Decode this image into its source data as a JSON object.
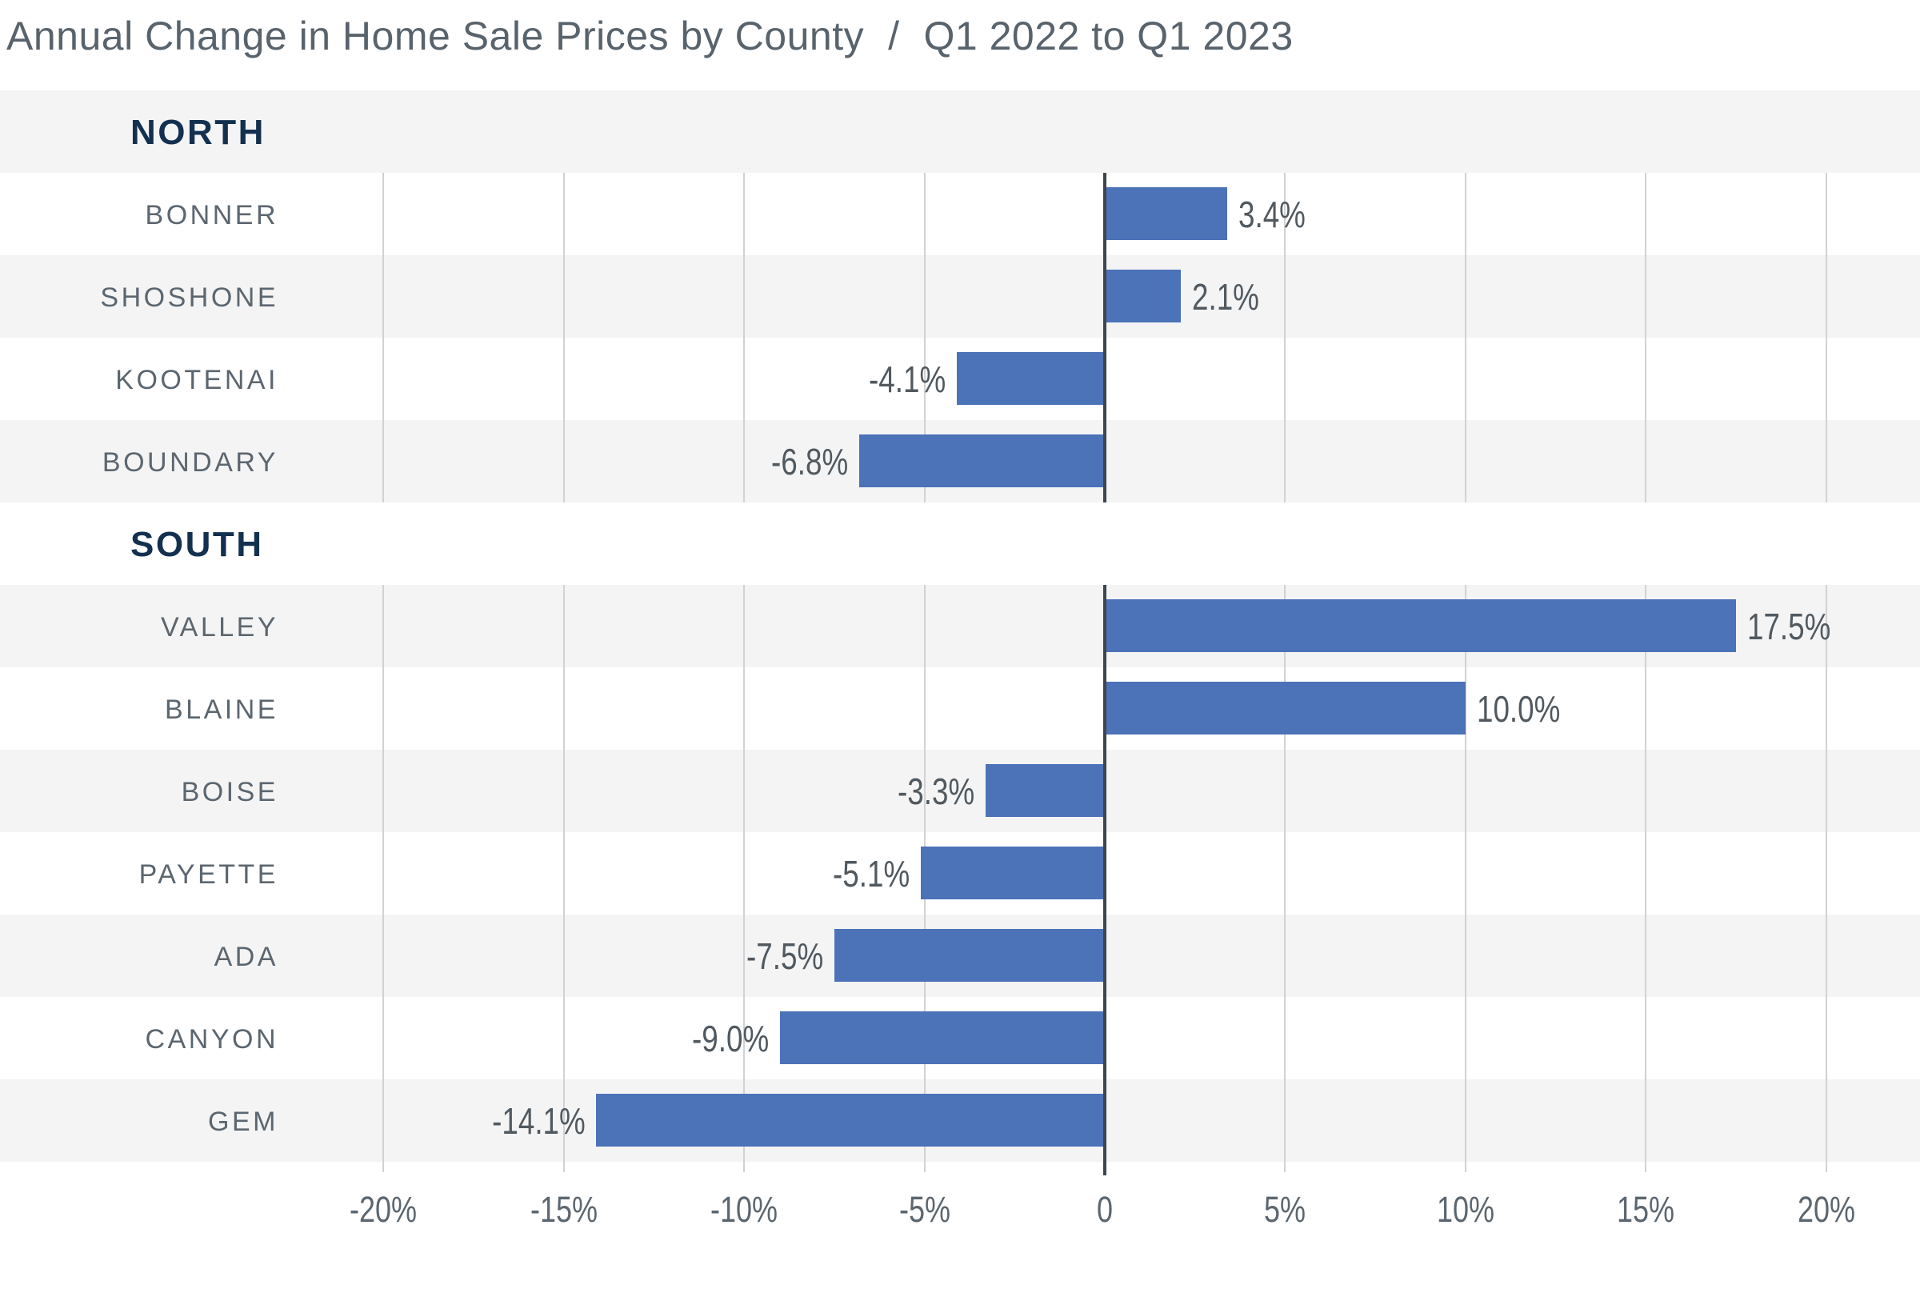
{
  "title": {
    "left": "Annual Change in Home Sale Prices by County",
    "separator": "/",
    "right": "Q1 2022 to Q1 2023"
  },
  "chart_data": {
    "type": "bar",
    "orientation": "horizontal",
    "title": "Annual Change in Home Sale Prices by County / Q1 2022 to Q1 2023",
    "unit": "percent",
    "xlim": [
      -20,
      20
    ],
    "grid": "vertical gridlines every 5%, zero axis emphasized, no gridlines in section header rows",
    "legend_position": "none",
    "axis_ticks": [
      {
        "value": -20,
        "label": "-20%"
      },
      {
        "value": -15,
        "label": "-15%"
      },
      {
        "value": -10,
        "label": "-10%"
      },
      {
        "value": -5,
        "label": "-5%"
      },
      {
        "value": 0,
        "label": "0"
      },
      {
        "value": 5,
        "label": "5%"
      },
      {
        "value": 10,
        "label": "10%"
      },
      {
        "value": 15,
        "label": "15%"
      },
      {
        "value": 20,
        "label": "20%"
      }
    ],
    "sections": [
      {
        "label": "NORTH",
        "rows": [
          {
            "county": "BONNER",
            "value": 3.4,
            "value_label": "3.4%"
          },
          {
            "county": "SHOSHONE",
            "value": 2.1,
            "value_label": "2.1%"
          },
          {
            "county": "KOOTENAI",
            "value": -4.1,
            "value_label": "-4.1%"
          },
          {
            "county": "BOUNDARY",
            "value": -6.8,
            "value_label": "-6.8%"
          }
        ]
      },
      {
        "label": "SOUTH",
        "rows": [
          {
            "county": "VALLEY",
            "value": 17.5,
            "value_label": "17.5%"
          },
          {
            "county": "BLAINE",
            "value": 10.0,
            "value_label": "10.0%"
          },
          {
            "county": "BOISE",
            "value": -3.3,
            "value_label": "-3.3%"
          },
          {
            "county": "PAYETTE",
            "value": -5.1,
            "value_label": "-5.1%"
          },
          {
            "county": "ADA",
            "value": -7.5,
            "value_label": "-7.5%"
          },
          {
            "county": "CANYON",
            "value": -9.0,
            "value_label": "-9.0%"
          },
          {
            "county": "GEM",
            "value": -14.1,
            "value_label": "-14.1%"
          }
        ]
      }
    ],
    "colors": {
      "bar": "#4C72B8",
      "zero_line": "#3E454C",
      "gridline": "#D2D2D2",
      "row_stripe": "#F4F4F5",
      "section_header_text": "#14304F",
      "county_label_text": "#5C666F",
      "value_label_text": "#51595F",
      "axis_tick_text": "#5C666F",
      "title_text": "#59636C",
      "background": "#FFFFFF"
    }
  }
}
